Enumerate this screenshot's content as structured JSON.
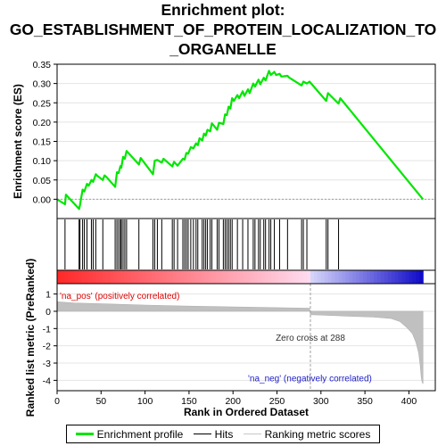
{
  "title_lines": [
    "Enrichment plot:",
    "GO_ESTABLISHMENT_OF_PROTEIN_LOCALIZATION_TO",
    "_ORGANELLE"
  ],
  "chart_data": {
    "type": "line",
    "xlabel": "Rank in Ordered Dataset",
    "ylabel_top": "Enrichment score (ES)",
    "ylabel_bottom": "Ranked list metric (PreRanked)",
    "xlim": [
      0,
      430
    ],
    "x_ticks": [
      0,
      50,
      100,
      150,
      200,
      250,
      300,
      350,
      400
    ],
    "es_ylim": [
      -0.05,
      0.35
    ],
    "es_ticks": [
      0.0,
      0.05,
      0.1,
      0.15,
      0.2,
      0.25,
      0.3,
      0.35
    ],
    "metric_ylim": [
      -4.6,
      1.6
    ],
    "metric_ticks": [
      1,
      0,
      -1,
      -2,
      -3,
      -4
    ],
    "n_genes": 416,
    "zero_cross": 288,
    "zero_cross_label": "Zero cross at 288",
    "pos_label": "'na_pos' (positively correlated)",
    "neg_label": "'na_neg' (negatively correlated)",
    "es_curve": {
      "x": [
        0,
        9,
        10,
        25,
        26,
        29,
        31,
        34,
        36,
        39,
        41,
        44,
        46,
        52,
        54,
        56,
        66,
        68,
        70,
        72,
        73,
        75,
        77,
        79,
        93,
        95,
        109,
        111,
        114,
        119,
        121,
        131,
        133,
        137,
        143,
        145,
        147,
        149,
        152,
        155,
        158,
        160,
        162,
        165,
        167,
        169,
        171,
        174,
        176,
        182,
        184,
        189,
        191,
        193,
        195,
        197,
        199,
        201,
        205,
        207,
        211,
        213,
        217,
        219,
        223,
        225,
        229,
        231,
        235,
        237,
        241,
        243,
        247,
        249,
        253,
        255,
        262,
        264,
        278,
        280,
        284,
        287,
        306,
        308,
        320,
        322,
        416
      ],
      "y": [
        0.0,
        -0.013,
        0.012,
        -0.025,
        -0.016,
        0.025,
        0.02,
        0.04,
        0.035,
        0.05,
        0.045,
        0.065,
        0.06,
        0.05,
        0.062,
        0.058,
        0.032,
        0.07,
        0.068,
        0.086,
        0.082,
        0.11,
        0.105,
        0.125,
        0.09,
        0.107,
        0.065,
        0.1,
        0.102,
        0.095,
        0.105,
        0.085,
        0.097,
        0.087,
        0.105,
        0.103,
        0.12,
        0.118,
        0.135,
        0.132,
        0.145,
        0.14,
        0.158,
        0.152,
        0.17,
        0.165,
        0.18,
        0.176,
        0.197,
        0.18,
        0.198,
        0.195,
        0.22,
        0.218,
        0.24,
        0.235,
        0.262,
        0.255,
        0.27,
        0.262,
        0.28,
        0.268,
        0.285,
        0.275,
        0.3,
        0.292,
        0.31,
        0.298,
        0.315,
        0.308,
        0.333,
        0.322,
        0.33,
        0.322,
        0.325,
        0.318,
        0.32,
        0.315,
        0.295,
        0.305,
        0.3,
        0.305,
        0.255,
        0.275,
        0.248,
        0.262,
        0.0
      ]
    },
    "hits": [
      9,
      25,
      26,
      29,
      31,
      34,
      39,
      41,
      44,
      52,
      66,
      68,
      70,
      72,
      73,
      75,
      77,
      79,
      93,
      109,
      111,
      114,
      119,
      131,
      133,
      137,
      143,
      145,
      147,
      149,
      152,
      155,
      158,
      160,
      165,
      167,
      169,
      171,
      174,
      176,
      182,
      184,
      189,
      191,
      193,
      195,
      197,
      199,
      205,
      211,
      217,
      223,
      225,
      229,
      231,
      235,
      237,
      241,
      243,
      247,
      253,
      262,
      278,
      280,
      284,
      306,
      308,
      320
    ],
    "metric_curve": {
      "x": [
        0,
        20,
        60,
        100,
        150,
        200,
        250,
        287,
        288,
        300,
        330,
        360,
        380,
        390,
        398,
        404,
        408,
        411,
        413,
        414,
        415,
        416
      ],
      "y": [
        0.55,
        0.48,
        0.42,
        0.36,
        0.3,
        0.25,
        0.21,
        0.18,
        -0.2,
        -0.22,
        -0.28,
        -0.34,
        -0.42,
        -0.6,
        -0.95,
        -1.3,
        -1.8,
        -2.4,
        -3.2,
        -3.8,
        -4.1,
        -4.2
      ]
    },
    "colors": {
      "es_line": "#00e600",
      "hits": "#000000",
      "metric_fill": "#c0c0c0",
      "pos_label": "#e00000",
      "neg_label": "#2020c8",
      "zero_line": "#a0a0a0"
    },
    "legend": [
      {
        "label": "Enrichment profile",
        "color": "#00e600",
        "width": 3
      },
      {
        "label": "Hits",
        "color": "#000000",
        "width": 1
      },
      {
        "label": "Ranking metric scores",
        "color": "#c8c8c8",
        "width": 1
      }
    ]
  }
}
